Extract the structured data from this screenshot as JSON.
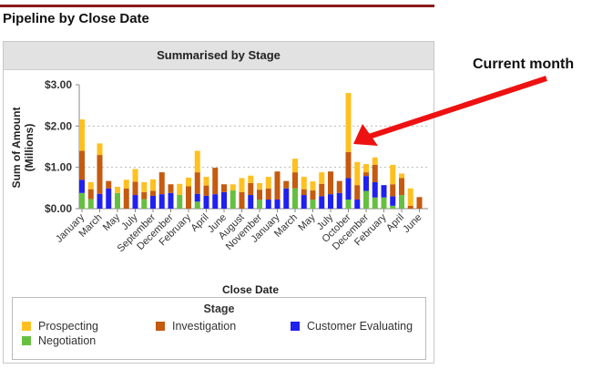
{
  "page": {
    "title": "Pipeline by Close Date",
    "annotation": "Current month"
  },
  "colors": {
    "Prospecting": "#ffc020",
    "Investigation": "#c55a10",
    "Customer Evaluating": "#2020f0",
    "Negotiation": "#66c040",
    "arrow": "#ee1111",
    "topline": "#8b1a1a"
  },
  "chart_data": {
    "type": "bar",
    "stacked": true,
    "title": "Summarised by Stage",
    "xlabel": "Close Date",
    "ylabel": "Sum of Amount (Millions)",
    "ylim": [
      0,
      3
    ],
    "yticks": [
      "$0.00",
      "$1.00",
      "$2.00",
      "$3.00"
    ],
    "grid": true,
    "legend_title": "Stage",
    "legend_position": "bottom",
    "tick_labels": [
      "January",
      "March",
      "May",
      "July",
      "September",
      "December",
      "February",
      "April",
      "June",
      "August",
      "November",
      "January",
      "March",
      "May",
      "July",
      "October",
      "December",
      "February",
      "April",
      "June"
    ],
    "series": [
      {
        "name": "Negotiation",
        "values": [
          0.38,
          0.23,
          0,
          0,
          0.38,
          0,
          0,
          0.23,
          0,
          0,
          0,
          0.33,
          0,
          0.17,
          0,
          0,
          0,
          0.44,
          0,
          0,
          0.22,
          0,
          0,
          0,
          0.49,
          0,
          0.22,
          0,
          0,
          0,
          0.22,
          0,
          0.43,
          0.27,
          0.27,
          0.07,
          0.33,
          0,
          0
        ]
      },
      {
        "name": "Customer Evaluating",
        "values": [
          0.32,
          0,
          0.36,
          0.49,
          0,
          0,
          0.33,
          0,
          0.31,
          0.35,
          0.38,
          0,
          0,
          0.19,
          0.31,
          0.35,
          0.4,
          0,
          0,
          0.33,
          0,
          0.22,
          0.22,
          0.49,
          0,
          0.33,
          0,
          0.3,
          0.35,
          0.38,
          0.52,
          0.22,
          0.36,
          0.37,
          0.3,
          0.23,
          0,
          0,
          0
        ]
      },
      {
        "name": "Investigation",
        "values": [
          0.7,
          0.24,
          0.94,
          0.18,
          0,
          0.49,
          0.32,
          0.17,
          0.12,
          0.53,
          0.21,
          0,
          0.54,
          0.52,
          0.25,
          0.64,
          0.19,
          0,
          0.4,
          0.29,
          0.24,
          0.27,
          0.68,
          0.18,
          0.39,
          0.14,
          0.22,
          0.3,
          0.55,
          0.29,
          0.63,
          0.35,
          0.09,
          0.42,
          0,
          0.29,
          0.41,
          0.07,
          0.28
        ]
      },
      {
        "name": "Prospecting",
        "values": [
          0.76,
          0.17,
          0.28,
          0,
          0.15,
          0.21,
          0.31,
          0.24,
          0.28,
          0,
          0,
          0.27,
          0.21,
          0.52,
          0.21,
          0,
          0,
          0.15,
          0.34,
          0.18,
          0.16,
          0.28,
          0,
          0,
          0.33,
          0.3,
          0.22,
          0.28,
          0,
          0,
          1.43,
          0.56,
          0.2,
          0.18,
          0,
          0.47,
          0.11,
          0.42,
          0
        ]
      }
    ]
  }
}
